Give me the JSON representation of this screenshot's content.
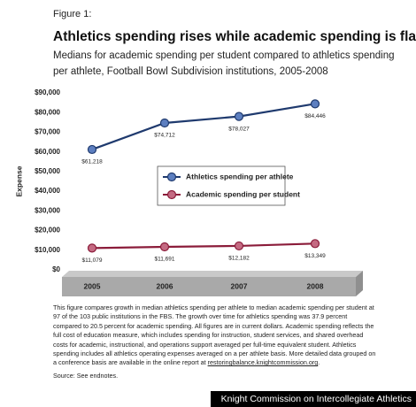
{
  "chart_data": {
    "type": "line",
    "figure_label": "Figure 1:",
    "title": "Athletics spending rises while academic spending is flat",
    "subtitle": [
      "Medians for academic spending per student compared to athletics spending",
      "per athlete, Football Bowl Subdivision institutions, 2005-2008"
    ],
    "y_label": "Expense",
    "categories": [
      "2005",
      "2006",
      "2007",
      "2008"
    ],
    "series": [
      {
        "name": "Athletics spending per athlete",
        "color": "#1f3a6e",
        "marker_color": "#5d7fc0",
        "values": [
          61218,
          74712,
          78027,
          84446
        ],
        "value_labels": [
          "$61,218",
          "$74,712",
          "$78,027",
          "$84,446"
        ]
      },
      {
        "name": "Academic spending per student",
        "color": "#8b1c3a",
        "marker_color": "#c46a82",
        "values": [
          11079,
          11691,
          12182,
          13349
        ],
        "value_labels": [
          "$11,079",
          "$11,691",
          "$12,182",
          "$13,349"
        ]
      }
    ],
    "ylim": [
      0,
      90000
    ],
    "yticks": [
      {
        "value": 0,
        "label": "$0"
      },
      {
        "value": 10000,
        "label": "$10,000"
      },
      {
        "value": 20000,
        "label": "$20,000"
      },
      {
        "value": 30000,
        "label": "$30,000"
      },
      {
        "value": 40000,
        "label": "$40,000"
      },
      {
        "value": 50000,
        "label": "$50,000"
      },
      {
        "value": 60000,
        "label": "$60,000"
      },
      {
        "value": 70000,
        "label": "$70,000"
      },
      {
        "value": 80000,
        "label": "$80,000"
      },
      {
        "value": 90000,
        "label": "$90,000"
      }
    ],
    "grid": false
  },
  "note": "This figure compares growth in median athletics spending per athlete to median academic spending per student at 97 of the 103 public institutions in the FBS. The growth over time for athletics spending was 37.9 percent compared to 20.5 percent for academic spending. All figures are in current dollars. Academic spending reflects the full cost of education measure, which includes spending for instruction, student services, and shared overhead costs for academic, instructional, and operations support averaged per full-time equivalent student. Athletics spending includes all athletics operating expenses averaged on a per athlete basis. More detailed data grouped on a conference basis are available in the online report at ",
  "note_link": "restoringbalance.knightcommission.org",
  "note_end": ".",
  "source": "Source: See endnotes.",
  "credit": "Knight Commission on Intercollegiate Athletics"
}
